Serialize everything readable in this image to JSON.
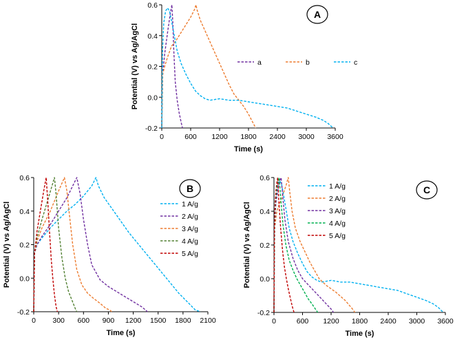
{
  "chart_data": [
    {
      "type": "line",
      "panel_label": "A",
      "xlabel": "Time (s)",
      "ylabel": "Potential (V) vs Ag/AgCl",
      "xlim": [
        0,
        3600
      ],
      "ylim": [
        -0.2,
        0.6
      ],
      "xticks": [
        "0",
        "600",
        "1200",
        "1800",
        "2400",
        "3000",
        "3600"
      ],
      "yticks": [
        "-0.2",
        "0.0",
        "0.2",
        "0.4",
        "0.6"
      ],
      "legend": "top-right, horizontal",
      "series": [
        {
          "name": "a",
          "color": "#7030a0",
          "x": [
            0,
            20,
            60,
            120,
            180,
            210,
            230,
            250,
            280,
            320,
            360,
            400,
            430
          ],
          "y": [
            -0.2,
            0.15,
            0.28,
            0.42,
            0.55,
            0.6,
            0.48,
            0.3,
            0.1,
            -0.02,
            -0.1,
            -0.16,
            -0.2
          ]
        },
        {
          "name": "b",
          "color": "#ed7d31",
          "x": [
            0,
            20,
            60,
            120,
            200,
            300,
            400,
            500,
            600,
            680,
            710,
            730,
            800,
            900,
            1000,
            1100,
            1200,
            1300,
            1400,
            1500,
            1600,
            1700,
            1800,
            1900,
            1950
          ],
          "y": [
            -0.2,
            0.15,
            0.2,
            0.26,
            0.33,
            0.37,
            0.42,
            0.47,
            0.52,
            0.57,
            0.6,
            0.57,
            0.5,
            0.43,
            0.36,
            0.29,
            0.22,
            0.15,
            0.08,
            0.02,
            -0.02,
            -0.06,
            -0.11,
            -0.17,
            -0.2
          ]
        },
        {
          "name": "c",
          "color": "#00b0f0",
          "x": [
            0,
            15,
            40,
            80,
            120,
            160,
            200,
            260,
            320,
            400,
            500,
            600,
            700,
            800,
            900,
            1000,
            1200,
            1400,
            1600,
            1800,
            2000,
            2200,
            2400,
            2600,
            2800,
            3000,
            3200,
            3350,
            3450,
            3520,
            3560
          ],
          "y": [
            -0.2,
            0.3,
            0.48,
            0.56,
            0.58,
            0.56,
            0.5,
            0.4,
            0.3,
            0.22,
            0.15,
            0.09,
            0.04,
            0.01,
            -0.01,
            -0.02,
            -0.01,
            -0.02,
            -0.02,
            -0.03,
            -0.04,
            -0.05,
            -0.06,
            -0.07,
            -0.09,
            -0.11,
            -0.13,
            -0.15,
            -0.17,
            -0.19,
            -0.2
          ]
        }
      ]
    },
    {
      "type": "line",
      "panel_label": "B",
      "xlabel": "Time (s)",
      "ylabel": "Potential (V) vs Ag/AgCl",
      "xlim": [
        0,
        2100
      ],
      "ylim": [
        -0.2,
        0.6
      ],
      "xticks": [
        "0",
        "300",
        "600",
        "900",
        "1200",
        "1500",
        "1800",
        "2100"
      ],
      "yticks": [
        "-0.2",
        "0.0",
        "0.2",
        "0.4",
        "0.6"
      ],
      "legend": "right, vertical",
      "series": [
        {
          "name": "1 A/g",
          "color": "#00b0f0",
          "x": [
            0,
            10,
            40,
            100,
            200,
            300,
            400,
            500,
            600,
            700,
            750,
            780,
            850,
            950,
            1050,
            1150,
            1250,
            1350,
            1450,
            1550,
            1650,
            1750,
            1850,
            1950,
            2010
          ],
          "y": [
            -0.2,
            0.15,
            0.2,
            0.24,
            0.3,
            0.35,
            0.4,
            0.44,
            0.49,
            0.55,
            0.6,
            0.55,
            0.48,
            0.41,
            0.34,
            0.27,
            0.21,
            0.15,
            0.09,
            0.03,
            -0.03,
            -0.09,
            -0.14,
            -0.19,
            -0.2
          ]
        },
        {
          "name": "2 A/g",
          "color": "#7030a0",
          "x": [
            0,
            10,
            40,
            100,
            200,
            300,
            400,
            480,
            520,
            560,
            600,
            650,
            700,
            800,
            900,
            1000,
            1100,
            1200,
            1300,
            1350,
            1370
          ],
          "y": [
            -0.2,
            0.15,
            0.2,
            0.25,
            0.32,
            0.4,
            0.48,
            0.56,
            0.6,
            0.5,
            0.35,
            0.2,
            0.08,
            -0.01,
            -0.05,
            -0.08,
            -0.11,
            -0.14,
            -0.17,
            -0.19,
            -0.2
          ]
        },
        {
          "name": "3 A/g",
          "color": "#ed7d31",
          "x": [
            0,
            10,
            40,
            100,
            200,
            300,
            370,
            400,
            430,
            470,
            520,
            580,
            650,
            720,
            800,
            870,
            920,
            940
          ],
          "y": [
            -0.2,
            0.15,
            0.22,
            0.3,
            0.4,
            0.52,
            0.6,
            0.52,
            0.38,
            0.2,
            0.05,
            -0.04,
            -0.09,
            -0.12,
            -0.15,
            -0.18,
            -0.19,
            -0.2
          ]
        },
        {
          "name": "4 A/g",
          "color": "#548235",
          "x": [
            0,
            10,
            40,
            100,
            160,
            220,
            250,
            270,
            300,
            340,
            380,
            420,
            460,
            500,
            520
          ],
          "y": [
            -0.2,
            0.15,
            0.24,
            0.35,
            0.45,
            0.55,
            0.6,
            0.5,
            0.3,
            0.12,
            0.0,
            -0.08,
            -0.13,
            -0.18,
            -0.2
          ]
        },
        {
          "name": "5 A/g",
          "color": "#c00000",
          "x": [
            0,
            10,
            40,
            80,
            120,
            150,
            170,
            190,
            210,
            230,
            250,
            270,
            285
          ],
          "y": [
            -0.2,
            0.15,
            0.28,
            0.4,
            0.52,
            0.6,
            0.45,
            0.28,
            0.12,
            0.0,
            -0.1,
            -0.17,
            -0.2
          ]
        }
      ]
    },
    {
      "type": "line",
      "panel_label": "C",
      "xlabel": "Time (s)",
      "ylabel": "Potential (V) vs Ag/AgCl",
      "xlim": [
        0,
        3600
      ],
      "ylim": [
        -0.2,
        0.6
      ],
      "xticks": [
        "0",
        "600",
        "1200",
        "1800",
        "2400",
        "3000",
        "3600"
      ],
      "yticks": [
        "-0.2",
        "0.0",
        "0.2",
        "0.4",
        "0.6"
      ],
      "legend": "top-left, vertical",
      "series": [
        {
          "name": "1 A/g",
          "color": "#00b0f0",
          "x": [
            0,
            15,
            40,
            80,
            120,
            160,
            200,
            260,
            320,
            400,
            500,
            600,
            700,
            800,
            900,
            1000,
            1200,
            1400,
            1600,
            1800,
            2000,
            2200,
            2400,
            2600,
            2800,
            3000,
            3200,
            3350,
            3450,
            3520,
            3560
          ],
          "y": [
            -0.2,
            0.3,
            0.48,
            0.56,
            0.58,
            0.56,
            0.5,
            0.4,
            0.3,
            0.22,
            0.15,
            0.09,
            0.04,
            0.01,
            -0.01,
            -0.02,
            -0.01,
            -0.02,
            -0.02,
            -0.03,
            -0.04,
            -0.05,
            -0.06,
            -0.07,
            -0.09,
            -0.11,
            -0.13,
            -0.15,
            -0.17,
            -0.19,
            -0.2
          ]
        },
        {
          "name": "2 A/g",
          "color": "#ed7d31",
          "x": [
            0,
            15,
            60,
            150,
            250,
            300,
            330,
            380,
            450,
            550,
            650,
            750,
            850,
            950,
            1100,
            1300,
            1500,
            1650,
            1700
          ],
          "y": [
            -0.2,
            0.3,
            0.4,
            0.47,
            0.55,
            0.6,
            0.52,
            0.4,
            0.3,
            0.22,
            0.16,
            0.1,
            0.05,
            0.0,
            -0.04,
            -0.08,
            -0.13,
            -0.18,
            -0.2
          ]
        },
        {
          "name": "3 A/g",
          "color": "#7030a0",
          "x": [
            0,
            10,
            40,
            80,
            120,
            150,
            180,
            230,
            300,
            400,
            500,
            600,
            700,
            800,
            900,
            1000,
            1100,
            1200,
            1250
          ],
          "y": [
            -0.2,
            0.3,
            0.45,
            0.52,
            0.58,
            0.6,
            0.5,
            0.35,
            0.22,
            0.12,
            0.05,
            0.0,
            -0.03,
            -0.06,
            -0.09,
            -0.12,
            -0.15,
            -0.18,
            -0.2
          ]
        },
        {
          "name": "4 A/g",
          "color": "#00b050",
          "x": [
            0,
            10,
            30,
            60,
            90,
            110,
            140,
            190,
            250,
            320,
            400,
            480,
            560,
            640,
            720,
            800,
            870,
            920
          ],
          "y": [
            -0.2,
            0.3,
            0.45,
            0.54,
            0.58,
            0.6,
            0.48,
            0.32,
            0.2,
            0.11,
            0.05,
            0.0,
            -0.04,
            -0.08,
            -0.12,
            -0.15,
            -0.18,
            -0.2
          ]
        },
        {
          "name": "5 A/g",
          "color": "#c00000",
          "x": [
            0,
            10,
            25,
            45,
            65,
            80,
            100,
            140,
            180,
            220,
            260,
            300,
            340,
            380,
            410,
            420
          ],
          "y": [
            -0.2,
            0.3,
            0.45,
            0.53,
            0.58,
            0.6,
            0.47,
            0.3,
            0.17,
            0.07,
            0.0,
            -0.06,
            -0.11,
            -0.16,
            -0.19,
            -0.2
          ]
        }
      ]
    }
  ]
}
